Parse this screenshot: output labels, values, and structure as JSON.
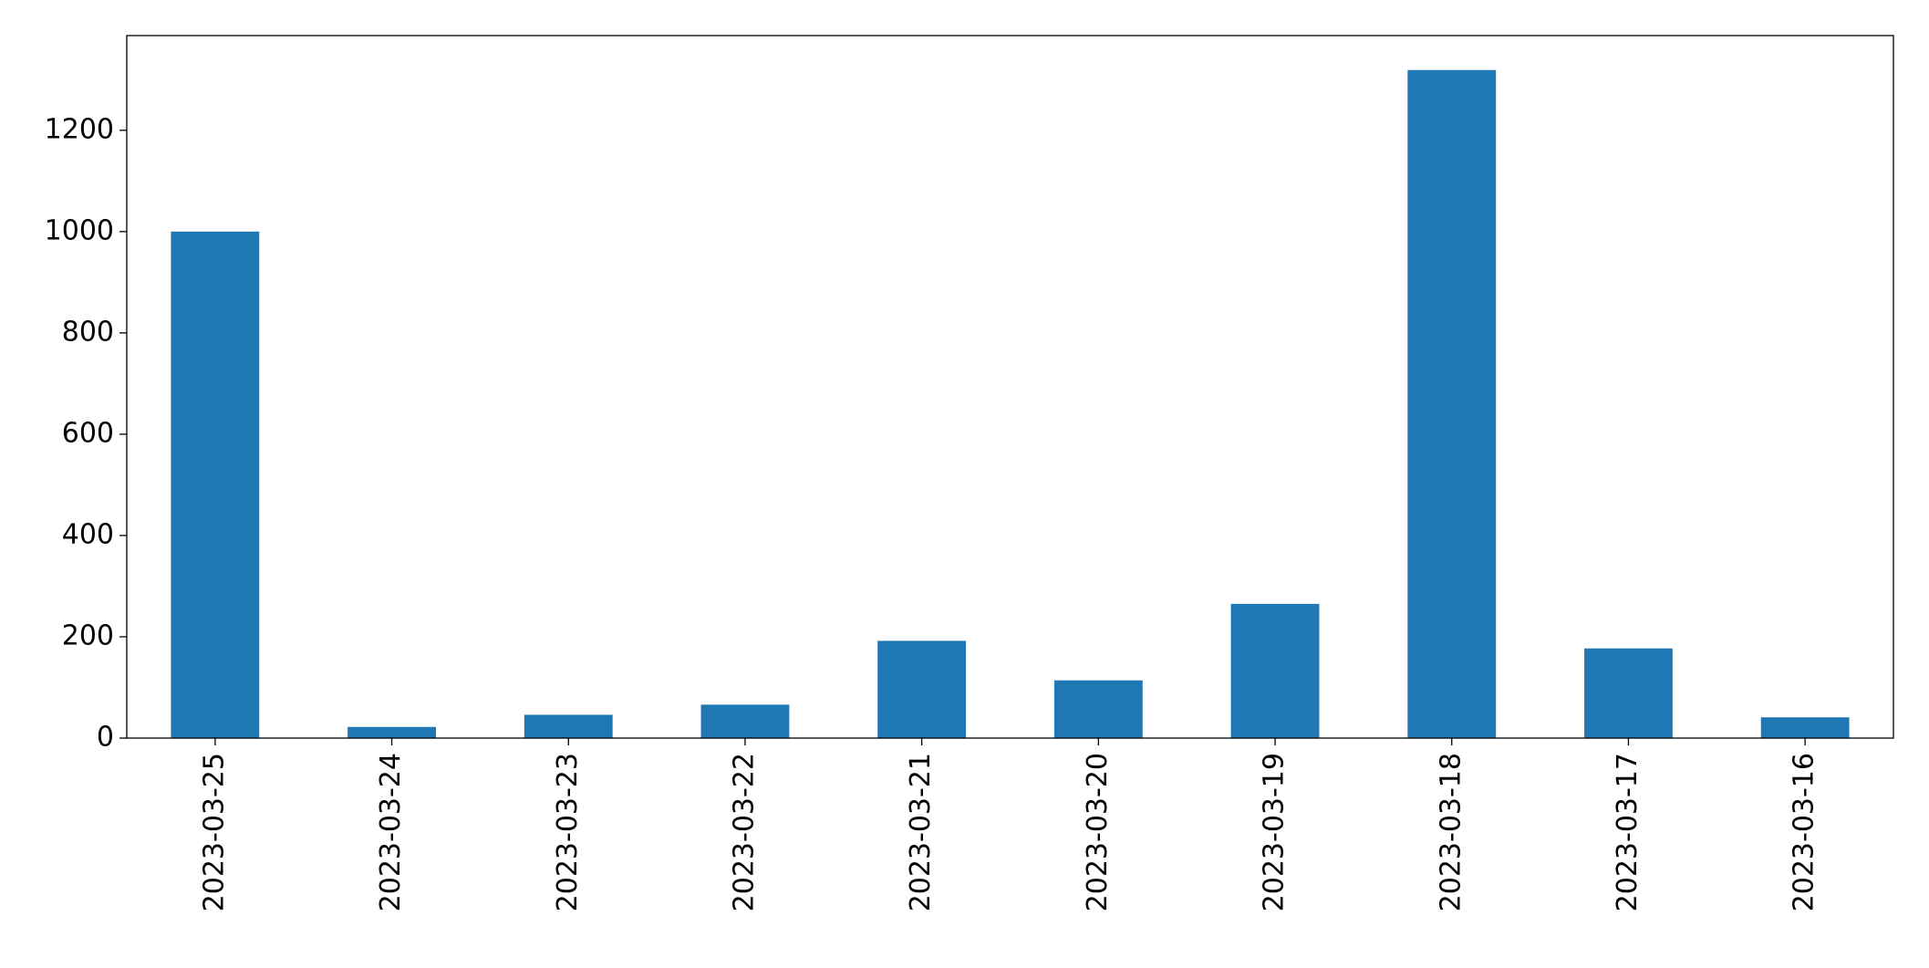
{
  "chart_data": {
    "type": "bar",
    "categories": [
      "2023-03-25",
      "2023-03-24",
      "2023-03-23",
      "2023-03-22",
      "2023-03-21",
      "2023-03-20",
      "2023-03-19",
      "2023-03-18",
      "2023-03-17",
      "2023-03-16"
    ],
    "values": [
      1000,
      22,
      46,
      66,
      192,
      114,
      265,
      1319,
      177,
      41
    ],
    "color": "#1f77b4",
    "ylim": [
      0,
      1387
    ],
    "yticks": [
      0,
      200,
      400,
      600,
      800,
      1000,
      1200
    ],
    "grid": false
  }
}
